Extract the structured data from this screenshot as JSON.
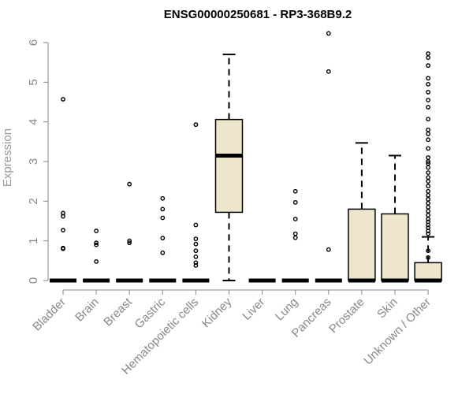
{
  "chart_data": {
    "type": "boxplot",
    "title": "ENSG00000250681 - RP3-368B9.2",
    "xlabel": "",
    "ylabel": "Expression",
    "ylim": [
      0,
      6
    ],
    "yticks": [
      "0",
      "1",
      "2",
      "3",
      "4",
      "5",
      "6"
    ],
    "categories": [
      "Bladder",
      "Brain",
      "Breast",
      "Gastric",
      "Hematopoietic cells",
      "Kidney",
      "Liver",
      "Lung",
      "Pancreas",
      "Prostate",
      "Skin",
      "Unknown / Other"
    ],
    "colors": {
      "box_fill": "#ede6cc",
      "stroke": "#000000",
      "axis_text": "#888888"
    },
    "boxes": [
      {
        "name": "Bladder",
        "q1": 0,
        "median": 0,
        "q3": 0,
        "whisker_low": 0,
        "whisker_high": 0,
        "outliers": [
          4.57,
          1.7,
          1.62,
          1.27,
          0.82,
          0.8
        ]
      },
      {
        "name": "Brain",
        "q1": 0,
        "median": 0,
        "q3": 0,
        "whisker_low": 0,
        "whisker_high": 0,
        "outliers": [
          1.25,
          0.95,
          0.9,
          0.48
        ]
      },
      {
        "name": "Breast",
        "q1": 0,
        "median": 0,
        "q3": 0,
        "whisker_low": 0,
        "whisker_high": 0,
        "outliers": [
          2.43,
          1.0,
          0.95
        ]
      },
      {
        "name": "Gastric",
        "q1": 0,
        "median": 0,
        "q3": 0,
        "whisker_low": 0,
        "whisker_high": 0,
        "outliers": [
          2.07,
          1.8,
          1.58,
          1.07,
          0.7
        ]
      },
      {
        "name": "Hematopoietic cells",
        "q1": 0,
        "median": 0,
        "q3": 0,
        "whisker_low": 0,
        "whisker_high": 0,
        "outliers": [
          3.93,
          1.4,
          1.05,
          0.92,
          0.75,
          0.6,
          0.45,
          0.38
        ]
      },
      {
        "name": "Kidney",
        "q1": 1.72,
        "median": 3.15,
        "q3": 4.06,
        "whisker_low": 0,
        "whisker_high": 5.7,
        "outliers": []
      },
      {
        "name": "Liver",
        "q1": 0,
        "median": 0,
        "q3": 0,
        "whisker_low": 0,
        "whisker_high": 0,
        "outliers": []
      },
      {
        "name": "Lung",
        "q1": 0,
        "median": 0,
        "q3": 0,
        "whisker_low": 0,
        "whisker_high": 0,
        "outliers": [
          2.25,
          1.97,
          1.55,
          1.18,
          1.08
        ]
      },
      {
        "name": "Pancreas",
        "q1": 0,
        "median": 0,
        "q3": 0,
        "whisker_low": 0,
        "whisker_high": 0,
        "outliers": [
          6.23,
          5.27,
          0.78
        ]
      },
      {
        "name": "Prostate",
        "q1": 0,
        "median": 0,
        "q3": 1.8,
        "whisker_low": 0,
        "whisker_high": 3.47,
        "outliers": []
      },
      {
        "name": "Skin",
        "q1": 0,
        "median": 0,
        "q3": 1.68,
        "whisker_low": 0,
        "whisker_high": 3.15,
        "outliers": []
      },
      {
        "name": "Unknown / Other",
        "q1": 0,
        "median": 0,
        "q3": 0.45,
        "whisker_low": 0,
        "whisker_high": 1.1,
        "outliers": [
          5.72,
          5.62,
          5.42,
          5.1,
          4.95,
          4.75,
          4.55,
          4.37,
          4.07,
          3.8,
          3.7,
          3.55,
          3.33,
          3.1,
          3.0,
          2.95,
          2.85,
          2.72,
          2.6,
          2.5,
          2.38,
          2.25,
          2.15,
          2.05,
          1.95,
          1.85,
          1.75,
          1.65,
          1.55,
          1.48,
          1.4,
          1.33,
          1.25,
          1.18,
          0.75,
          0.58
        ]
      }
    ]
  }
}
